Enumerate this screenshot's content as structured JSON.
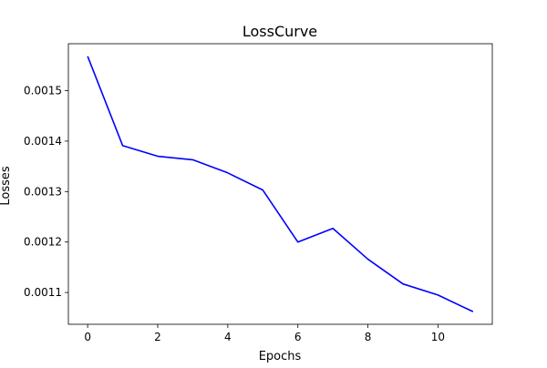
{
  "chart_data": {
    "type": "line",
    "title": "LossCurve",
    "xlabel": "Epochs",
    "ylabel": "Losses",
    "xlim": [
      -0.55,
      11.55
    ],
    "ylim": [
      0.001037,
      0.001593
    ],
    "xticks": [
      0,
      2,
      4,
      6,
      8,
      10
    ],
    "xtick_labels": [
      "0",
      "2",
      "4",
      "6",
      "8",
      "10"
    ],
    "yticks": [
      0.0011,
      0.0012,
      0.0013,
      0.0014,
      0.0015
    ],
    "ytick_labels": [
      "0.0011",
      "0.0012",
      "0.0013",
      "0.0014",
      "0.0015"
    ],
    "grid": false,
    "series": [
      {
        "color": "#0000ff",
        "x": [
          0,
          1,
          2,
          3,
          4,
          5,
          6,
          7,
          8,
          9,
          10,
          11
        ],
        "values": [
          0.001568,
          0.001391,
          0.00137,
          0.001363,
          0.001337,
          0.001303,
          0.0012,
          0.001227,
          0.001166,
          0.001117,
          0.001095,
          0.001062
        ]
      }
    ]
  }
}
